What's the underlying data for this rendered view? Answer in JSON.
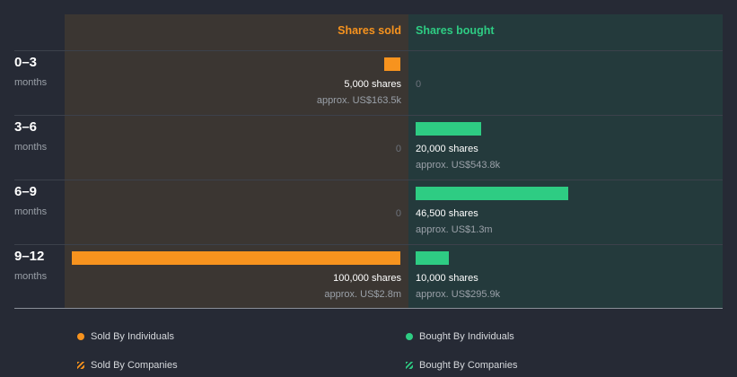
{
  "chart_data": {
    "type": "bar",
    "title": "",
    "headers": {
      "sold": "Shares sold",
      "bought": "Shares bought"
    },
    "unit_label": "months",
    "max_shares": 100000,
    "periods": [
      {
        "label": "0–3",
        "unit": "months",
        "sold": {
          "shares": 5000,
          "shares_text": "5,000 shares",
          "approx": "approx. US$163.5k"
        },
        "bought": {
          "shares": 0,
          "shares_text": "0",
          "approx": ""
        }
      },
      {
        "label": "3–6",
        "unit": "months",
        "sold": {
          "shares": 0,
          "shares_text": "0",
          "approx": ""
        },
        "bought": {
          "shares": 20000,
          "shares_text": "20,000 shares",
          "approx": "approx. US$543.8k"
        }
      },
      {
        "label": "6–9",
        "unit": "months",
        "sold": {
          "shares": 0,
          "shares_text": "0",
          "approx": ""
        },
        "bought": {
          "shares": 46500,
          "shares_text": "46,500 shares",
          "approx": "approx. US$1.3m"
        }
      },
      {
        "label": "9–12",
        "unit": "months",
        "sold": {
          "shares": 100000,
          "shares_text": "100,000 shares",
          "approx": "approx. US$2.8m"
        },
        "bought": {
          "shares": 10000,
          "shares_text": "10,000 shares",
          "approx": "approx. US$295.9k"
        }
      }
    ],
    "legend": [
      {
        "label": "Sold By Individuals",
        "color": "#f7931e",
        "style": "dot"
      },
      {
        "label": "Bought By Individuals",
        "color": "#2ecc83",
        "style": "dot"
      },
      {
        "label": "Sold By Companies",
        "color": "#f7931e",
        "style": "hatch"
      },
      {
        "label": "Bought By Companies",
        "color": "#2ecc83",
        "style": "hatch"
      }
    ],
    "colors": {
      "sold": "#f7931e",
      "bought": "#2ecc83"
    }
  }
}
